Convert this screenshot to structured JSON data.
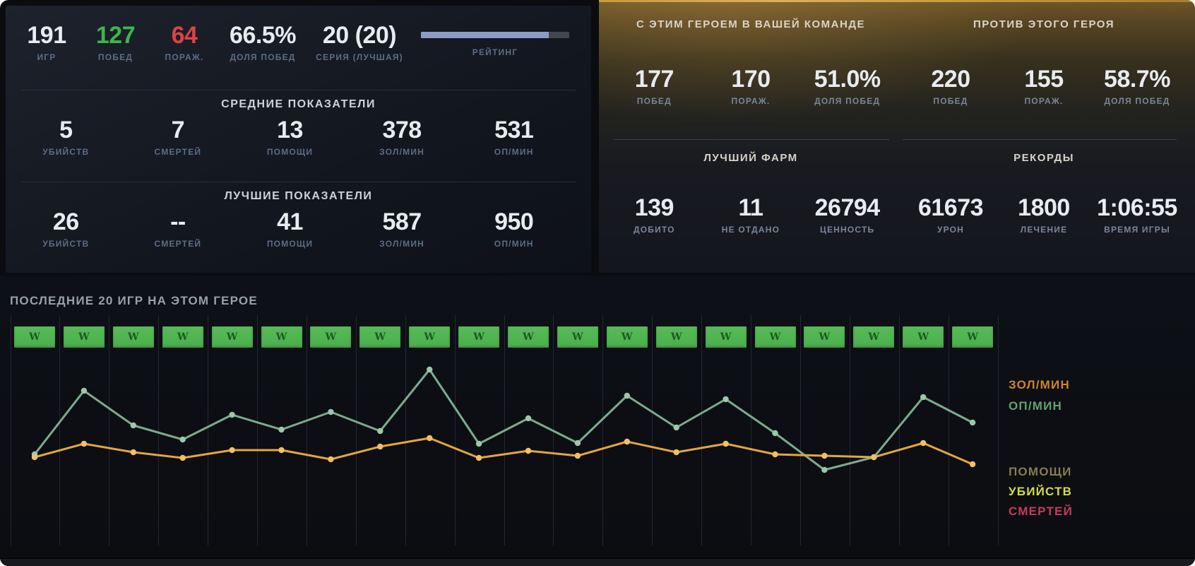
{
  "overview": {
    "games": {
      "value": "191",
      "label": "ИГР"
    },
    "wins": {
      "value": "127",
      "label": "ПОБЕД",
      "color": "#3db54b"
    },
    "losses": {
      "value": "64",
      "label": "ПОРАЖ.",
      "color": "#dd4343"
    },
    "winrate": {
      "value": "66.5%",
      "label": "ДОЛЯ ПОБЕД"
    },
    "streak": {
      "value": "20 (20)",
      "label": "СЕРИЯ (ЛУЧШАЯ)"
    },
    "rating": {
      "label": "РЕЙТИНГ",
      "progress_pct": 86,
      "fill_color": "#8b9cc6",
      "track_color": "#43474e"
    }
  },
  "averages": {
    "title": "СРЕДНИЕ ПОКАЗАТЕЛИ",
    "stats": [
      {
        "value": "5",
        "label": "УБИЙСТВ"
      },
      {
        "value": "7",
        "label": "СМЕРТЕЙ"
      },
      {
        "value": "13",
        "label": "ПОМОЩИ"
      },
      {
        "value": "378",
        "label": "ЗОЛ/МИН"
      },
      {
        "value": "531",
        "label": "ОП/МИН"
      }
    ]
  },
  "bests": {
    "title": "ЛУЧШИЕ ПОКАЗАТЕЛИ",
    "stats": [
      {
        "value": "26",
        "label": "УБИЙСТВ"
      },
      {
        "value": "--",
        "label": "СМЕРТЕЙ"
      },
      {
        "value": "41",
        "label": "ПОМОЩИ"
      },
      {
        "value": "587",
        "label": "ЗОЛ/МИН"
      },
      {
        "value": "950",
        "label": "ОП/МИН"
      }
    ]
  },
  "with_hero": {
    "title": "С ЭТИМ ГЕРОЕМ В ВАШЕЙ КОМАНДЕ",
    "stats": [
      {
        "value": "177",
        "label": "ПОБЕД"
      },
      {
        "value": "170",
        "label": "ПОРАЖ."
      },
      {
        "value": "51.0%",
        "label": "ДОЛЯ ПОБЕД"
      }
    ]
  },
  "against_hero": {
    "title": "ПРОТИВ ЭТОГО ГЕРОЯ",
    "stats": [
      {
        "value": "220",
        "label": "ПОБЕД"
      },
      {
        "value": "155",
        "label": "ПОРАЖ."
      },
      {
        "value": "58.7%",
        "label": "ДОЛЯ ПОБЕД"
      }
    ]
  },
  "best_farm": {
    "title": "ЛУЧШИЙ ФАРМ",
    "stats": [
      {
        "value": "139",
        "label": "ДОБИТО"
      },
      {
        "value": "11",
        "label": "НЕ ОТДАНО"
      },
      {
        "value": "26794",
        "label": "ЦЕННОСТЬ"
      }
    ]
  },
  "records": {
    "title": "РЕКОРДЫ",
    "stats": [
      {
        "value": "61673",
        "label": "УРОН"
      },
      {
        "value": "1800",
        "label": "ЛЕЧЕНИЕ"
      },
      {
        "value": "1:06:55",
        "label": "ВРЕМЯ ИГРЫ"
      }
    ]
  },
  "recent": {
    "title": "ПОСЛЕДНИЕ 20 ИГР НА ЭТОМ ГЕРОЕ",
    "results": [
      "W",
      "W",
      "W",
      "W",
      "W",
      "W",
      "W",
      "W",
      "W",
      "W",
      "W",
      "W",
      "W",
      "W",
      "W",
      "W",
      "W",
      "W",
      "W",
      "W"
    ],
    "win_color": "#56bb57",
    "result_letter_color": "#1b5c20"
  },
  "chart_data": {
    "type": "line",
    "title": "ПОСЛЕДНИЕ 20 ИГР НА ЭТОМ ГЕРОЕ",
    "x": [
      1,
      2,
      3,
      4,
      5,
      6,
      7,
      8,
      9,
      10,
      11,
      12,
      13,
      14,
      15,
      16,
      17,
      18,
      19,
      20
    ],
    "series": [
      {
        "name": "ЗОЛ/МИН",
        "color": "#d1832b",
        "line_color": "#e2a63e",
        "point_color": "#f0c065",
        "values": [
          452,
          528,
          480,
          448,
          492,
          492,
          440,
          512,
          560,
          448,
          488,
          460,
          540,
          480,
          528,
          468,
          460,
          452,
          532,
          412
        ]
      },
      {
        "name": "ОП/МИН",
        "color": "#63a173",
        "line_color": "#7cab8c",
        "point_color": "#9cc7ab",
        "values": [
          468,
          828,
          632,
          552,
          692,
          608,
          708,
          600,
          948,
          528,
          672,
          532,
          800,
          620,
          780,
          588,
          380,
          452,
          792,
          648
        ]
      }
    ],
    "secondary_legend": [
      {
        "name": "ПОМОЩИ",
        "color": "#877c50"
      },
      {
        "name": "УБИЙСТВ",
        "color": "#d5dc43"
      },
      {
        "name": "СМЕРТЕЙ",
        "color": "#c73a58"
      }
    ],
    "ylim": [
      0,
      1000
    ],
    "grid": "vertical-only",
    "legend_position": "right",
    "note": "values estimated from pixels; no numeric axes shown"
  }
}
